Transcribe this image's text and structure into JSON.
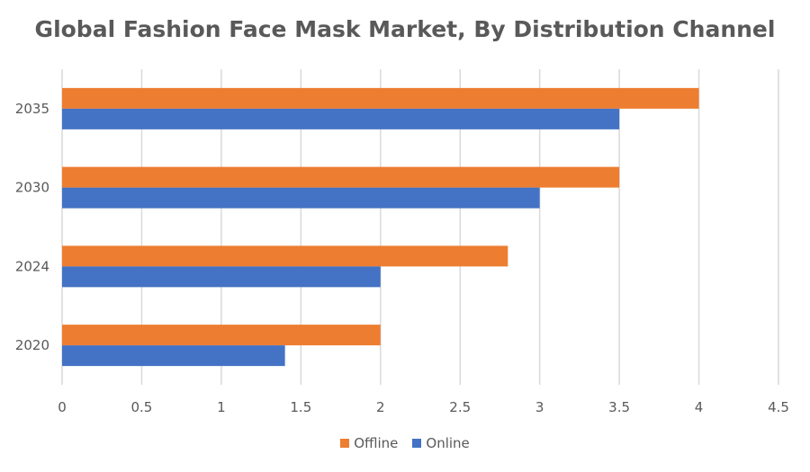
{
  "chart_data": {
    "type": "bar",
    "orientation": "horizontal",
    "title": "Global Fashion Face Mask Market, By Distribution Channel",
    "categories": [
      "2035",
      "2030",
      "2024",
      "2020"
    ],
    "series": [
      {
        "name": "Offline",
        "color": "#ED7D31",
        "values": [
          4,
          3.5,
          2.8,
          2
        ]
      },
      {
        "name": "Online",
        "color": "#4472C4",
        "values": [
          3.5,
          3,
          2,
          1.4
        ]
      }
    ],
    "xlim": [
      0,
      4.5
    ],
    "xticks": [
      "0",
      "0.5",
      "1",
      "1.5",
      "2",
      "2.5",
      "3",
      "3.5",
      "4",
      "4.5"
    ],
    "xlabel": "",
    "ylabel": "",
    "grid": "vertical",
    "legend": {
      "position": "bottom",
      "items": [
        {
          "name": "Offline",
          "color": "#ED7D31"
        },
        {
          "name": "Online",
          "color": "#4472C4"
        }
      ]
    }
  }
}
